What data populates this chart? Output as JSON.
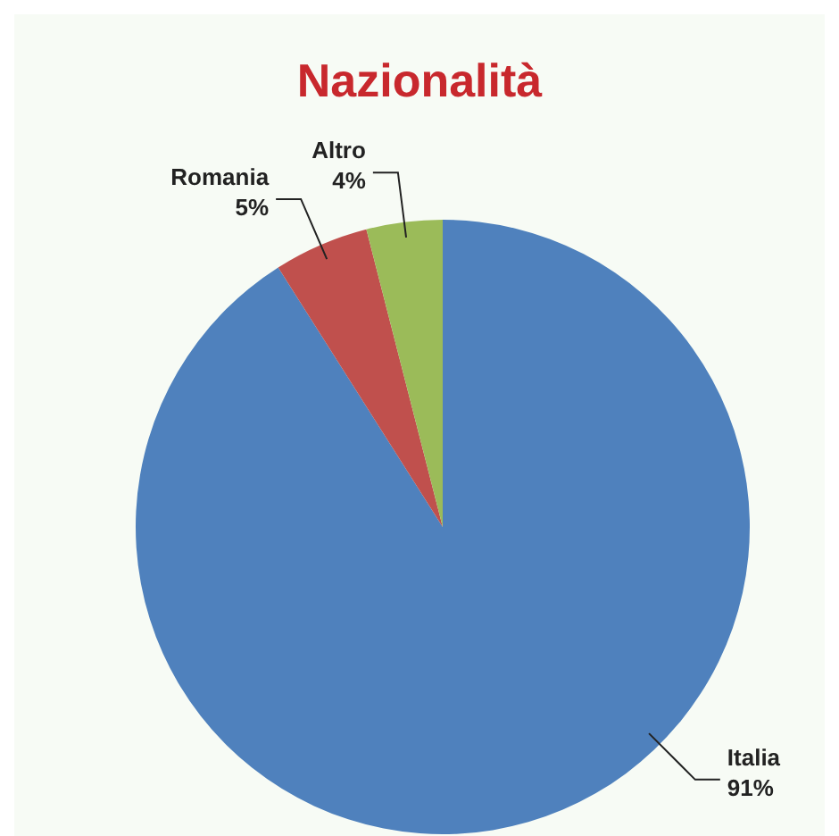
{
  "chart_data": {
    "type": "pie",
    "title": "Nazionalità",
    "categories": [
      "Italia",
      "Romania",
      "Altro"
    ],
    "values": [
      91,
      5,
      4
    ],
    "colors": [
      "#4f81bd",
      "#c0504d",
      "#9bbb59"
    ],
    "value_labels": [
      "91%",
      "5%",
      "4%"
    ]
  }
}
